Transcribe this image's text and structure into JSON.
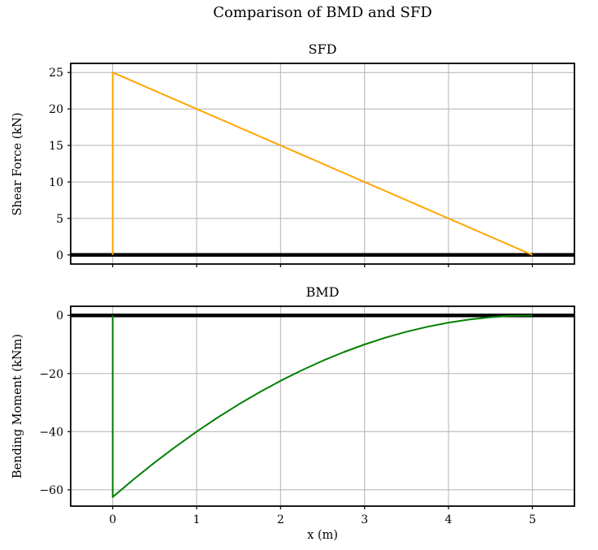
{
  "figure": {
    "title": "Comparison of BMD and SFD",
    "background_color": "#ffffff",
    "grid_color": "#b0b0b0",
    "spine_color": "#000000",
    "zero_line_color": "#000000"
  },
  "chart_data": [
    {
      "type": "line",
      "title": "SFD",
      "ylabel": "Shear Force (kN)",
      "xlabel": "",
      "line_color": "#FFA500",
      "xlim": [
        -0.5,
        5.5
      ],
      "ylim": [
        -1.25,
        26.25
      ],
      "xticks": [
        0,
        1,
        2,
        3,
        4,
        5
      ],
      "yticks": [
        0,
        5,
        10,
        15,
        20,
        25
      ],
      "show_xtick_labels": false,
      "grid": true,
      "legend": "none",
      "zero_line": true,
      "series": [
        {
          "name": "shear-force",
          "points": [
            [
              0,
              0
            ],
            [
              0,
              25
            ],
            [
              5,
              0
            ]
          ]
        }
      ]
    },
    {
      "type": "line",
      "title": "BMD",
      "ylabel": "Bending Moment (kNm)",
      "xlabel": "x (m)",
      "line_color": "#008000",
      "xlim": [
        -0.5,
        5.5
      ],
      "ylim": [
        -65.63,
        3.13
      ],
      "xticks": [
        0,
        1,
        2,
        3,
        4,
        5
      ],
      "yticks": [
        0,
        -20,
        -40,
        -60
      ],
      "show_xtick_labels": true,
      "grid": true,
      "legend": "none",
      "zero_line": true,
      "series": [
        {
          "name": "bending-moment",
          "points": [
            [
              0,
              0
            ],
            [
              0,
              -62.5
            ],
            [
              0.25,
              -56.41
            ],
            [
              0.5,
              -50.63
            ],
            [
              0.75,
              -45.16
            ],
            [
              1,
              -40
            ],
            [
              1.25,
              -35.16
            ],
            [
              1.5,
              -30.63
            ],
            [
              1.75,
              -26.41
            ],
            [
              2,
              -22.5
            ],
            [
              2.25,
              -18.91
            ],
            [
              2.5,
              -15.63
            ],
            [
              2.75,
              -12.66
            ],
            [
              3,
              -10
            ],
            [
              3.25,
              -7.66
            ],
            [
              3.5,
              -5.63
            ],
            [
              3.75,
              -3.91
            ],
            [
              4,
              -2.5
            ],
            [
              4.25,
              -1.41
            ],
            [
              4.5,
              -0.63
            ],
            [
              4.75,
              -0.16
            ],
            [
              5,
              0
            ]
          ]
        }
      ]
    }
  ]
}
